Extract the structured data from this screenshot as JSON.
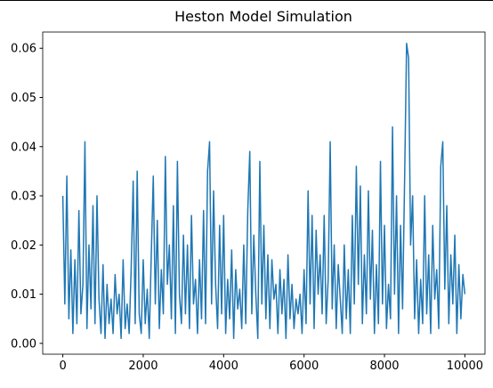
{
  "chart_data": {
    "type": "line",
    "title": "Heston Model Simulation",
    "color": "#1f77b4",
    "xlim": [
      -500,
      10500
    ],
    "ylim": [
      -0.0022,
      0.0633
    ],
    "xticks": [
      0,
      2000,
      4000,
      6000,
      8000,
      10000
    ],
    "yticks": [
      {
        "value": 0,
        "label": "0.00"
      },
      0.01,
      0.02,
      0.03,
      0.04,
      0.05,
      0.06
    ],
    "grid": false,
    "x": [
      0,
      50,
      100,
      150,
      200,
      250,
      300,
      350,
      400,
      450,
      500,
      550,
      600,
      650,
      700,
      750,
      800,
      850,
      900,
      950,
      1000,
      1050,
      1100,
      1150,
      1200,
      1250,
      1300,
      1350,
      1400,
      1450,
      1500,
      1550,
      1600,
      1650,
      1700,
      1750,
      1800,
      1850,
      1900,
      1950,
      2000,
      2050,
      2100,
      2150,
      2200,
      2250,
      2300,
      2350,
      2400,
      2450,
      2500,
      2550,
      2600,
      2650,
      2700,
      2750,
      2800,
      2850,
      2900,
      2950,
      3000,
      3050,
      3100,
      3150,
      3200,
      3250,
      3300,
      3350,
      3400,
      3450,
      3500,
      3550,
      3600,
      3650,
      3700,
      3750,
      3800,
      3850,
      3900,
      3950,
      4000,
      4050,
      4100,
      4150,
      4200,
      4250,
      4300,
      4350,
      4400,
      4450,
      4500,
      4550,
      4600,
      4650,
      4700,
      4750,
      4800,
      4850,
      4900,
      4950,
      5000,
      5050,
      5100,
      5150,
      5200,
      5250,
      5300,
      5350,
      5400,
      5450,
      5500,
      5550,
      5600,
      5650,
      5700,
      5750,
      5800,
      5850,
      5900,
      5950,
      6000,
      6050,
      6100,
      6150,
      6200,
      6250,
      6300,
      6350,
      6400,
      6450,
      6500,
      6550,
      6600,
      6650,
      6700,
      6750,
      6800,
      6850,
      6900,
      6950,
      7000,
      7050,
      7100,
      7150,
      7200,
      7250,
      7300,
      7350,
      7400,
      7450,
      7500,
      7550,
      7600,
      7650,
      7700,
      7750,
      7800,
      7850,
      7900,
      7950,
      8000,
      8050,
      8100,
      8150,
      8200,
      8250,
      8300,
      8350,
      8400,
      8450,
      8500,
      8550,
      8600,
      8650,
      8700,
      8750,
      8800,
      8850,
      8900,
      8950,
      9000,
      9050,
      9100,
      9150,
      9200,
      9250,
      9300,
      9350,
      9400,
      9450,
      9500,
      9550,
      9600,
      9650,
      9700,
      9750,
      9800,
      9850,
      9900,
      9950,
      10000
    ],
    "values": [
      0.03,
      0.008,
      0.034,
      0.005,
      0.019,
      0.002,
      0.017,
      0.004,
      0.027,
      0.006,
      0.012,
      0.041,
      0.003,
      0.02,
      0.007,
      0.028,
      0.004,
      0.03,
      0.009,
      0.002,
      0.016,
      0.001,
      0.012,
      0.004,
      0.009,
      0.002,
      0.014,
      0.006,
      0.01,
      0.001,
      0.017,
      0.003,
      0.008,
      0.002,
      0.015,
      0.033,
      0.004,
      0.035,
      0.006,
      0.002,
      0.017,
      0.004,
      0.011,
      0.001,
      0.018,
      0.034,
      0.008,
      0.025,
      0.003,
      0.015,
      0.006,
      0.038,
      0.012,
      0.02,
      0.005,
      0.028,
      0.002,
      0.037,
      0.01,
      0.004,
      0.022,
      0.006,
      0.02,
      0.003,
      0.026,
      0.008,
      0.013,
      0.002,
      0.017,
      0.005,
      0.027,
      0.004,
      0.035,
      0.041,
      0.008,
      0.031,
      0.012,
      0.003,
      0.024,
      0.006,
      0.026,
      0.002,
      0.013,
      0.005,
      0.019,
      0.001,
      0.015,
      0.007,
      0.011,
      0.003,
      0.02,
      0.004,
      0.027,
      0.039,
      0.006,
      0.022,
      0.01,
      0.001,
      0.037,
      0.008,
      0.024,
      0.005,
      0.018,
      0.003,
      0.017,
      0.009,
      0.012,
      0.002,
      0.015,
      0.006,
      0.013,
      0.001,
      0.018,
      0.005,
      0.012,
      0.003,
      0.009,
      0.006,
      0.01,
      0.002,
      0.015,
      0.004,
      0.031,
      0.008,
      0.026,
      0.003,
      0.023,
      0.01,
      0.018,
      0.006,
      0.026,
      0.004,
      0.013,
      0.041,
      0.007,
      0.02,
      0.003,
      0.016,
      0.009,
      0.002,
      0.02,
      0.005,
      0.015,
      0.002,
      0.026,
      0.008,
      0.036,
      0.012,
      0.032,
      0.004,
      0.018,
      0.006,
      0.031,
      0.009,
      0.023,
      0.002,
      0.016,
      0.004,
      0.037,
      0.008,
      0.024,
      0.003,
      0.012,
      0.005,
      0.044,
      0.01,
      0.03,
      0.002,
      0.024,
      0.007,
      0.033,
      0.061,
      0.058,
      0.02,
      0.03,
      0.005,
      0.017,
      0.002,
      0.013,
      0.004,
      0.03,
      0.006,
      0.018,
      0.002,
      0.024,
      0.009,
      0.015,
      0.003,
      0.036,
      0.041,
      0.011,
      0.028,
      0.004,
      0.018,
      0.008,
      0.022,
      0.002,
      0.016,
      0.005,
      0.014,
      0.01
    ]
  }
}
